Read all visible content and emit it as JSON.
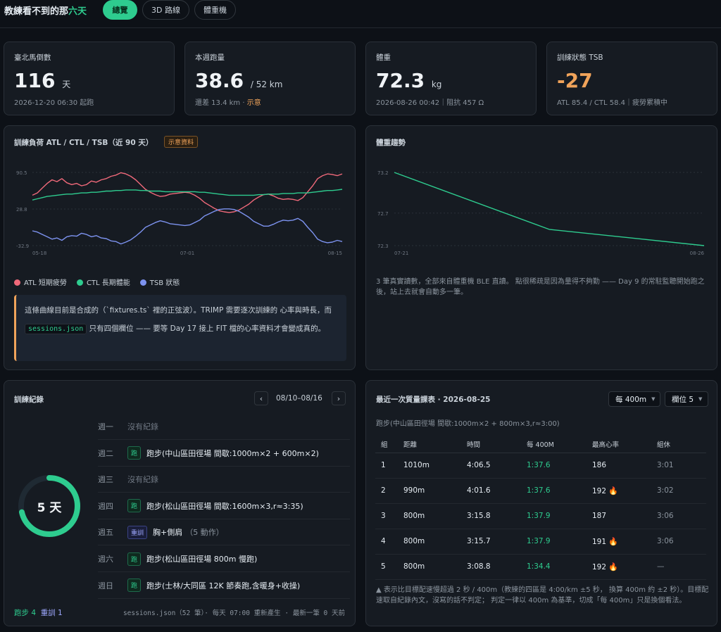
{
  "header": {
    "brand_main": "教練看不到的那",
    "brand_accent": "六天",
    "tabs": [
      {
        "label": "總覽",
        "active": true
      },
      {
        "label": "3D 路線",
        "active": false
      },
      {
        "label": "體重機",
        "active": false
      }
    ]
  },
  "stats": {
    "marathon": {
      "label": "臺北馬倒數",
      "value": "116",
      "unit": "天",
      "sub": "2026-12-20 06:30 起跑"
    },
    "weekly": {
      "label": "本週跑量",
      "value": "38.6",
      "unit": "/ 52 km",
      "sub": "還差 13.4 km · ",
      "sub_flag": "示意"
    },
    "weight": {
      "label": "體重",
      "value": "72.3",
      "unit": "kg",
      "sub": "2026-08-26 00:42｜阻抗 457 Ω"
    },
    "tsb": {
      "label": "訓練狀態 TSB",
      "value": "-27",
      "sub": "ATL 85.4 / CTL 58.4｜疲勞累積中"
    }
  },
  "load_chart": {
    "title": "訓練負荷 ATL / CTL / TSB（近 90 天）",
    "badge": "示意資料",
    "note_pre": "這條曲線目前是合成的（`fixtures.ts` 裡的正弦波）。TRIMP 需要逐次訓練的 心率與時長，而 ",
    "note_code": "sessions.json",
    "note_post": " 只有四個欄位 —— 要等 Day 17 接上 FIT 檔的心率資料才會變成真的。"
  },
  "weight_chart": {
    "title": "體重趨勢",
    "desc": "3 筆真實讀數，全部來自體重機 BLE 直讀。 點很稀疏是因為量得不夠勤 —— Day 9 的常駐監聽開始跑之後，站上去就會自動多一筆。"
  },
  "chart_data": [
    {
      "type": "line",
      "title": "訓練負荷 ATL / CTL / TSB（近 90 天）",
      "xlabel": "",
      "ylabel": "",
      "ylim": [
        -32.9,
        90.5
      ],
      "yticks": [
        "90.5",
        "28.8",
        "-32.9"
      ],
      "xticks": [
        "05-18",
        "07-01",
        "08-15"
      ],
      "grid": true,
      "legend_position": "bottom-left",
      "series": [
        {
          "name": "ATL 短期疲勞",
          "color": "#f0697a",
          "values": [
            52,
            56,
            64,
            72,
            78,
            75,
            80,
            73,
            70,
            72,
            68,
            70,
            76,
            74,
            78,
            80,
            84,
            86,
            90,
            88,
            84,
            78,
            70,
            62,
            57,
            53,
            50,
            51,
            54,
            55,
            56,
            57,
            56,
            52,
            47,
            40,
            35,
            30,
            26,
            24,
            23,
            24,
            27,
            32,
            37,
            44,
            49,
            53,
            54,
            51,
            47,
            45,
            46,
            45,
            43,
            48,
            58,
            68,
            80,
            85,
            88,
            87,
            85,
            88
          ]
        },
        {
          "name": "CTL 長期體能",
          "color": "#2ecc8f",
          "values": [
            44,
            46,
            48,
            50,
            51,
            52,
            53,
            54,
            54,
            55,
            56,
            56,
            57,
            57,
            58,
            59,
            59,
            60,
            60,
            61,
            61,
            61,
            60,
            60,
            59,
            59,
            59,
            58,
            58,
            58,
            58,
            58,
            58,
            58,
            57,
            57,
            56,
            55,
            54,
            53,
            52,
            52,
            52,
            52,
            52,
            52,
            53,
            53,
            54,
            54,
            54,
            55,
            55,
            55,
            56,
            56,
            56,
            57,
            58,
            59,
            60,
            60,
            61,
            62
          ]
        },
        {
          "name": "TSB 狀態",
          "color": "#7d93f0",
          "values": [
            -8,
            -10,
            -14,
            -18,
            -22,
            -20,
            -24,
            -18,
            -16,
            -17,
            -12,
            -14,
            -18,
            -16,
            -20,
            -21,
            -25,
            -26,
            -30,
            -27,
            -23,
            -17,
            -10,
            -2,
            2,
            6,
            9,
            7,
            4,
            3,
            2,
            1,
            2,
            6,
            10,
            17,
            21,
            25,
            28,
            29,
            29,
            28,
            25,
            20,
            15,
            8,
            4,
            0,
            0,
            3,
            7,
            10,
            9,
            10,
            13,
            8,
            -2,
            -11,
            -22,
            -26,
            -28,
            -27,
            -24,
            -26
          ]
        }
      ]
    },
    {
      "type": "line",
      "title": "體重趨勢",
      "xlabel": "",
      "ylabel": "",
      "ylim": [
        72.3,
        73.2
      ],
      "yticks": [
        "73.2",
        "72.7",
        "72.3"
      ],
      "xticks": [
        "07-21",
        "08-26"
      ],
      "grid": true,
      "series": [
        {
          "name": "",
          "color": "#2ecc8f",
          "values": [
            73.2,
            72.5,
            72.3
          ],
          "x_pos": [
            0,
            0.5,
            1
          ]
        }
      ]
    }
  ],
  "log": {
    "title": "訓練紀錄",
    "range": "08/10–08/16",
    "prev": "‹",
    "next": "›",
    "ring_label": "5 天",
    "ring_fraction": 0.714,
    "summary_run": "跑步 4",
    "summary_gym": "重訓 1",
    "footer": "sessions.json（52 筆）· 每天 07:00 重新產生 · 最新一筆 0 天前",
    "days": [
      {
        "day": "週一",
        "tag": "",
        "tag_type": "",
        "text": "沒有紀錄"
      },
      {
        "day": "週二",
        "tag": "跑",
        "tag_type": "run",
        "text": "跑步(中山區田徑場 間歇:1000m×2 + 600m×2)"
      },
      {
        "day": "週三",
        "tag": "",
        "tag_type": "",
        "text": "沒有紀錄"
      },
      {
        "day": "週四",
        "tag": "跑",
        "tag_type": "run",
        "text": "跑步(松山區田徑場 間歇:1600m×3,r≈3:35)"
      },
      {
        "day": "週五",
        "tag": "重訓",
        "tag_type": "gym",
        "text": "胸+側肩",
        "extra": "（5 動作）"
      },
      {
        "day": "週六",
        "tag": "跑",
        "tag_type": "run",
        "text": "跑步(松山區田徑場 800m 慢跑)"
      },
      {
        "day": "週日",
        "tag": "跑",
        "tag_type": "run",
        "text": "跑步(士林/大同區 12K 節奏跑,含暖身+收操)"
      }
    ]
  },
  "laps": {
    "title": "最近一次質量課表 · 2026-08-25",
    "select_pace": "每 400m",
    "select_cols": "欄位 5",
    "caret": "▼",
    "session": "跑步(中山區田徑場 間歇:1000m×2 + 800m×3,r≈3:00)",
    "headers": [
      "組",
      "距離",
      "時間",
      "每 400M",
      "最高心率",
      "組休"
    ],
    "rows": [
      {
        "n": "1",
        "dist": "1010m",
        "time": "4:06.5",
        "pace": "1:37.6",
        "hr": "186",
        "fire": false,
        "rest": "3:01"
      },
      {
        "n": "2",
        "dist": "990m",
        "time": "4:01.6",
        "pace": "1:37.6",
        "hr": "192",
        "fire": true,
        "rest": "3:02"
      },
      {
        "n": "3",
        "dist": "800m",
        "time": "3:15.8",
        "pace": "1:37.9",
        "hr": "187",
        "fire": false,
        "rest": "3:06"
      },
      {
        "n": "4",
        "dist": "800m",
        "time": "3:15.7",
        "pace": "1:37.9",
        "hr": "191",
        "fire": true,
        "rest": "3:06"
      },
      {
        "n": "5",
        "dist": "800m",
        "time": "3:08.8",
        "pace": "1:34.4",
        "hr": "192",
        "fire": true,
        "rest": "—"
      }
    ],
    "footnote": "▲ 表示比目標配速慢超過 2 秒 / 400m（教練的四區是 4:00/km ±5 秒， 換算 400m 約 ±2 秒）。目標配速取自紀錄內文，沒寫的話不判定； 判定一律以 400m 為基準，切成「每 400m」只是換個看法。"
  },
  "colors": {
    "accent": "#2ecc8f",
    "warn": "#f0a35a",
    "atl": "#f0697a",
    "tsb": "#7d93f0"
  },
  "icons": {
    "fire": "🔥"
  }
}
